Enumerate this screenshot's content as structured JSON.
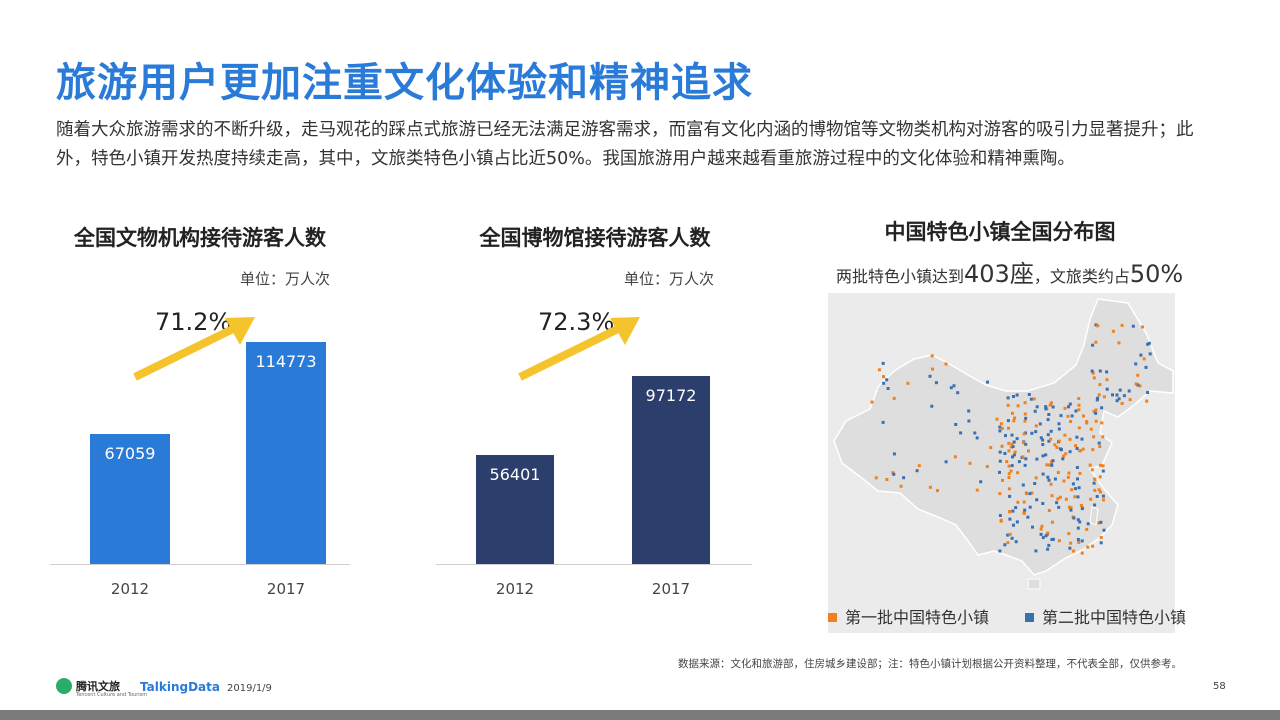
{
  "page": {
    "title": "旅游用户更加注重文化体验和精神追求",
    "intro": "随着大众旅游需求的不断升级，走马观花的踩点式旅游已经无法满足游客需求，而富有文化内涵的博物馆等文物类机构对游客的吸引力显著提升；此外，特色小镇开发热度持续走高，其中，文旅类特色小镇占比近50%。我国旅游用户越来越看重旅游过程中的文化体验和精神熏陶。"
  },
  "charts": {
    "left": {
      "title": "全国文物机构接待游客人数",
      "unit": "单位：万人次",
      "growth": "71.2%"
    },
    "middle": {
      "title": "全国博物馆接待游客人数",
      "unit": "单位：万人次",
      "growth": "72.3%"
    }
  },
  "chart_data": [
    {
      "type": "bar",
      "title": "全国文物机构接待游客人数",
      "ylabel": "单位：万人次",
      "categories": [
        "2012",
        "2017"
      ],
      "values": [
        67059,
        114773
      ],
      "ylim": [
        0,
        130000
      ],
      "color": "#2a7ad8",
      "annotation": "71.2%"
    },
    {
      "type": "bar",
      "title": "全国博物馆接待游客人数",
      "ylabel": "单位：万人次",
      "categories": [
        "2012",
        "2017"
      ],
      "values": [
        56401,
        97172
      ],
      "ylim": [
        0,
        130000
      ],
      "color": "#2c3e6b",
      "annotation": "72.3%"
    }
  ],
  "map": {
    "title": "中国特色小镇全国分布图",
    "subtitle_pre": "两批特色小镇达到",
    "subtitle_num": "403座",
    "subtitle_mid": "，文旅类约占",
    "subtitle_pct": "50%",
    "legend": [
      {
        "label": "第一批中国特色小镇",
        "color": "#f0821e"
      },
      {
        "label": "第二批中国特色小镇",
        "color": "#3b6fb0"
      }
    ]
  },
  "footer": {
    "source": "数据来源：文化和旅游部，住房城乡建设部；注：特色小镇计划根据公开资料整理，不代表全部，仅供参考。",
    "logo1": "腾讯文旅",
    "logo1_sub": "Tencent Culture and Tourism",
    "logo2": "TalkingData",
    "date": "2019/1/9",
    "page_number": "58"
  },
  "colors": {
    "accent": "#2a7ad8",
    "navy": "#2c3e6b",
    "arrow": "#f5c32c"
  }
}
